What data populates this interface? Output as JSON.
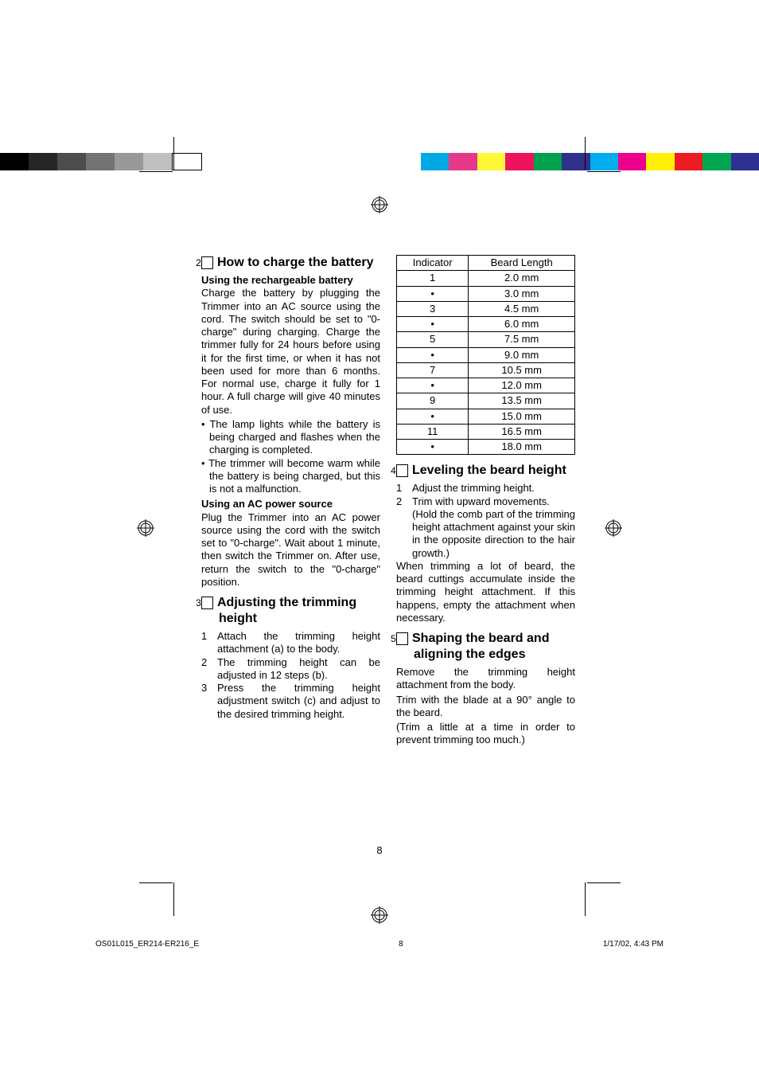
{
  "colorbar_left": [
    "#000000",
    "#262626",
    "#4d4d4d",
    "#737373",
    "#999999",
    "#bfbfbf",
    "#ffffff"
  ],
  "colorbar_right": [
    "#00a9e5",
    "#e53888",
    "#fff838",
    "#ed145b",
    "#00a04f",
    "#2f318b",
    "#00adee",
    "#ec018c",
    "#fff200",
    "#ed1c24",
    "#00a651",
    "#2e3192"
  ],
  "sections": {
    "s2": {
      "num": "2",
      "title": "How to charge the battery"
    },
    "s3": {
      "num": "3",
      "title": "Adjusting the trimming height"
    },
    "s4": {
      "num": "4",
      "title": "Leveling the beard height"
    },
    "s5": {
      "num": "5",
      "title": "Shaping the beard and aligning the edges"
    }
  },
  "subheads": {
    "rechargeable": "Using the rechargeable battery",
    "ac": "Using an AC power source"
  },
  "paragraphs": {
    "charge": "Charge the battery by plugging the Trimmer into an AC source using the cord. The switch should be set to \"0-charge\" during charging. Charge the trimmer fully for 24 hours before using it for the first time, or when it has not been used for more than 6 months. For normal use, charge it fully for 1 hour. A full charge will give 40 minutes of use.",
    "bullet1": "The lamp lights while the battery is being charged and flashes when the charging is completed.",
    "bullet2": "The trimmer will become warm while the battery is being charged, but this is not a malfunction.",
    "ac": "Plug the Trimmer into an AC power source using the cord with the switch set to \"0-charge\". Wait about 1 minute, then switch the Trimmer on. After use, return the switch to the \"0-charge\" position.",
    "adj1": "Attach the trimming height attachment (a) to the body.",
    "adj2": "The trimming height can be adjusted in 12 steps (b).",
    "adj3": "Press the trimming height adjustment switch (c) and adjust to the desired trimming height.",
    "lev1": "Adjust the trimming height.",
    "lev2": "Trim with upward movements.",
    "lev2b": "(Hold the comb part of the trimming height attachment against your skin in the opposite direction to the hair growth.)",
    "levpara": "When trimming a lot of beard, the beard cuttings accumulate inside the trimming height attachment. If this happens, empty the attachment when necessary.",
    "shape1": "Remove the trimming height attachment from the body.",
    "shape2": "Trim with the blade at a 90° angle to the beard.",
    "shape3": "(Trim a little at a time in order to prevent trimming too much.)"
  },
  "table": {
    "headers": [
      "Indicator",
      "Beard Length"
    ],
    "rows": [
      [
        "1",
        "2.0 mm"
      ],
      [
        "•",
        "3.0 mm"
      ],
      [
        "3",
        "4.5 mm"
      ],
      [
        "•",
        "6.0 mm"
      ],
      [
        "5",
        "7.5 mm"
      ],
      [
        "•",
        "9.0 mm"
      ],
      [
        "7",
        "10.5 mm"
      ],
      [
        "•",
        "12.0 mm"
      ],
      [
        "9",
        "13.5 mm"
      ],
      [
        "•",
        "15.0 mm"
      ],
      [
        "11",
        "16.5 mm"
      ],
      [
        "•",
        "18.0 mm"
      ]
    ]
  },
  "page_number": "8",
  "footer": {
    "file": "OS01L015_ER214-ER216_E",
    "page": "8",
    "date": "1/17/02, 4:43 PM"
  }
}
